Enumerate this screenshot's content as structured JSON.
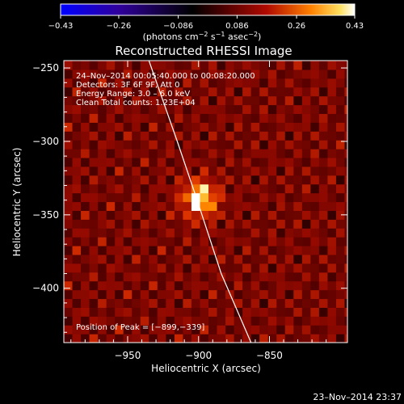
{
  "chart_data": {
    "type": "heatmap",
    "title": "Reconstructed RHESSI Image",
    "xlabel": "Heliocentric X (arcsec)",
    "ylabel": "Heliocentric Y (arcsec)",
    "xlim": [
      -995,
      -795
    ],
    "ylim": [
      -437,
      -245
    ],
    "x_ticks": [
      -950,
      -900,
      -850
    ],
    "x_tick_labels": [
      "−950",
      "−900",
      "−850"
    ],
    "y_ticks": [
      -250,
      -300,
      -350,
      -400
    ],
    "y_tick_labels": [
      "−250",
      "−300",
      "−350",
      "−400"
    ],
    "peak": [
      -899,
      -339
    ],
    "colorbar": {
      "min": -0.43,
      "max": 0.43,
      "tick_values": [
        -0.43,
        -0.26,
        -0.086,
        0.086,
        0.26,
        0.43
      ],
      "tick_labels": [
        "−0.43",
        "−0.26",
        "−0.086",
        "0.086",
        "0.26",
        "0.43"
      ],
      "unit_prefix": "(photons cm",
      "unit_exp1": "−2",
      "unit_mid": " s",
      "unit_exp2": "−1",
      "unit_mid2": " asec",
      "unit_exp3": "−2",
      "unit_suffix": ")"
    },
    "annotations": [
      "24–Nov–2014 00:05:40.000 to 00:08:20.000",
      "Detectors: 3F 6F 9F, Att 0",
      "Energy Range: 3.0 – 6.0 keV",
      "Clean    Total counts: 1.23E+04"
    ],
    "peak_label": "Position of Peak = [−899,−339]",
    "limb_curve": [
      [
        -935,
        -245
      ],
      [
        -915,
        -300
      ],
      [
        -901,
        -340
      ],
      [
        -884,
        -390
      ],
      [
        -863,
        -437
      ]
    ]
  },
  "colors": {
    "background": "#000000",
    "axes": "#ffffff",
    "colormap": [
      "#0000ff",
      "#3a00a0",
      "#000000",
      "#6a0000",
      "#c01a00",
      "#ff7a00",
      "#ffe040",
      "#ffffff"
    ]
  },
  "footer": {
    "timestamp": "23–Nov–2014 23:37"
  }
}
